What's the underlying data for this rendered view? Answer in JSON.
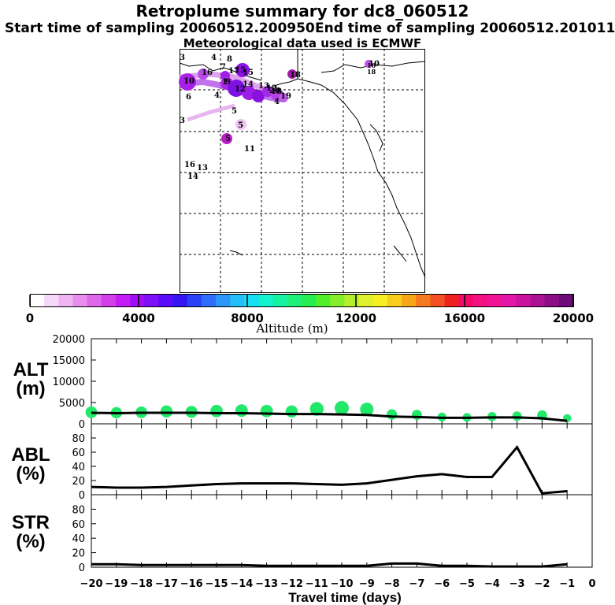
{
  "header": {
    "title": "Retroplume summary for dc8_060512",
    "start_label": "Start time of sampling 20060512.200950",
    "end_label": "End time of sampling 20060512.201011",
    "met_label": "Meteorological data used is ECMWF"
  },
  "map": {
    "point_labels": [
      "3",
      "4",
      "8",
      "7",
      "16",
      "15",
      "18",
      "10",
      "17",
      "15",
      "1",
      "12",
      "14",
      "13",
      "19",
      "9",
      "6",
      "20",
      "4",
      "4",
      "5",
      "3",
      "5",
      "5",
      "11",
      "16",
      "13",
      "14",
      "10",
      "18",
      "12"
    ],
    "offmap_labels": [
      "10",
      "18"
    ]
  },
  "colorbar": {
    "tick_labels": [
      "0",
      "4000",
      "8000",
      "12000",
      "16000",
      "20000"
    ],
    "title": "Altitude (m)",
    "min": 0,
    "max": 20000,
    "colors": [
      "#ffffff",
      "#f5d8f7",
      "#efb5f2",
      "#e68ded",
      "#dd66ea",
      "#d23ee8",
      "#c41cf5",
      "#a20df5",
      "#7d10f7",
      "#5a0cf8",
      "#3516f2",
      "#2a42f5",
      "#2f6cf9",
      "#2b95f8",
      "#23bef8",
      "#17dff3",
      "#12f2cd",
      "#17f2a0",
      "#1ef07a",
      "#26ee50",
      "#52ee2c",
      "#86ed2b",
      "#b4ef2c",
      "#def12c",
      "#f7ef23",
      "#f9cd1b",
      "#f8a51a",
      "#f67a1f",
      "#f24f22",
      "#ef2020",
      "#f20a6a",
      "#f5107f",
      "#f01494",
      "#e415a8",
      "#c9139e",
      "#a91292",
      "#8a0f86",
      "#6b0c78"
    ]
  },
  "chart_data": [
    {
      "type": "scatter",
      "panel_label_line1": "ALT",
      "panel_label_line2": "(m)",
      "ylabel": "ALT (m)",
      "ylim": [
        0,
        20000
      ],
      "yticks": [
        "0",
        "5000",
        "10000",
        "15000",
        "20000"
      ],
      "x": [
        -20,
        -19,
        -18,
        -17,
        -16,
        -15,
        -14,
        -13,
        -12,
        -11,
        -10,
        -9,
        -8,
        -7,
        -6,
        -5,
        -4,
        -3,
        -2,
        -1
      ],
      "line_values": [
        2600,
        2500,
        2600,
        2600,
        2600,
        2500,
        2500,
        2400,
        2300,
        2300,
        2200,
        2100,
        1700,
        1600,
        1400,
        1400,
        1500,
        1500,
        1300,
        700
      ],
      "dot_values": [
        2700,
        2600,
        2700,
        2900,
        2800,
        3000,
        3100,
        3000,
        2900,
        3500,
        3700,
        3400,
        2200,
        2100,
        1600,
        1500,
        1700,
        1800,
        2000,
        1300
      ]
    },
    {
      "type": "line",
      "panel_label_line1": "ABL",
      "panel_label_line2": "(%)",
      "ylabel": "ABL (%)",
      "ylim": [
        0,
        100
      ],
      "yticks": [
        "0",
        "20",
        "40",
        "60",
        "80"
      ],
      "x": [
        -20,
        -19,
        -18,
        -17,
        -16,
        -15,
        -14,
        -13,
        -12,
        -11,
        -10,
        -9,
        -8,
        -7,
        -6,
        -5,
        -4,
        -3,
        -2,
        -1
      ],
      "values": [
        11,
        10,
        10,
        11,
        13,
        15,
        16,
        16,
        16,
        15,
        14,
        16,
        21,
        26,
        29,
        25,
        25,
        67,
        2,
        5
      ]
    },
    {
      "type": "line",
      "panel_label_line1": "STR",
      "panel_label_line2": "(%)",
      "ylabel": "STR (%)",
      "ylim": [
        0,
        100
      ],
      "yticks": [
        "0",
        "20",
        "40",
        "60",
        "80"
      ],
      "x": [
        -20,
        -19,
        -18,
        -17,
        -16,
        -15,
        -14,
        -13,
        -12,
        -11,
        -10,
        -9,
        -8,
        -7,
        -6,
        -5,
        -4,
        -3,
        -2,
        -1
      ],
      "values": [
        4,
        4,
        3,
        3,
        3,
        3,
        3,
        2,
        2,
        2,
        2,
        2,
        5,
        5,
        2,
        2,
        1,
        1,
        1,
        4
      ]
    }
  ],
  "xaxis": {
    "tick_labels": [
      "−20",
      "−19",
      "−18",
      "−17",
      "−16",
      "−15",
      "−14",
      "−13",
      "−12",
      "−11",
      "−10",
      "−9",
      "−8",
      "−7",
      "−6",
      "−5",
      "−4",
      "−3",
      "−2",
      "−1",
      "0"
    ],
    "title": "Travel time (days)"
  }
}
